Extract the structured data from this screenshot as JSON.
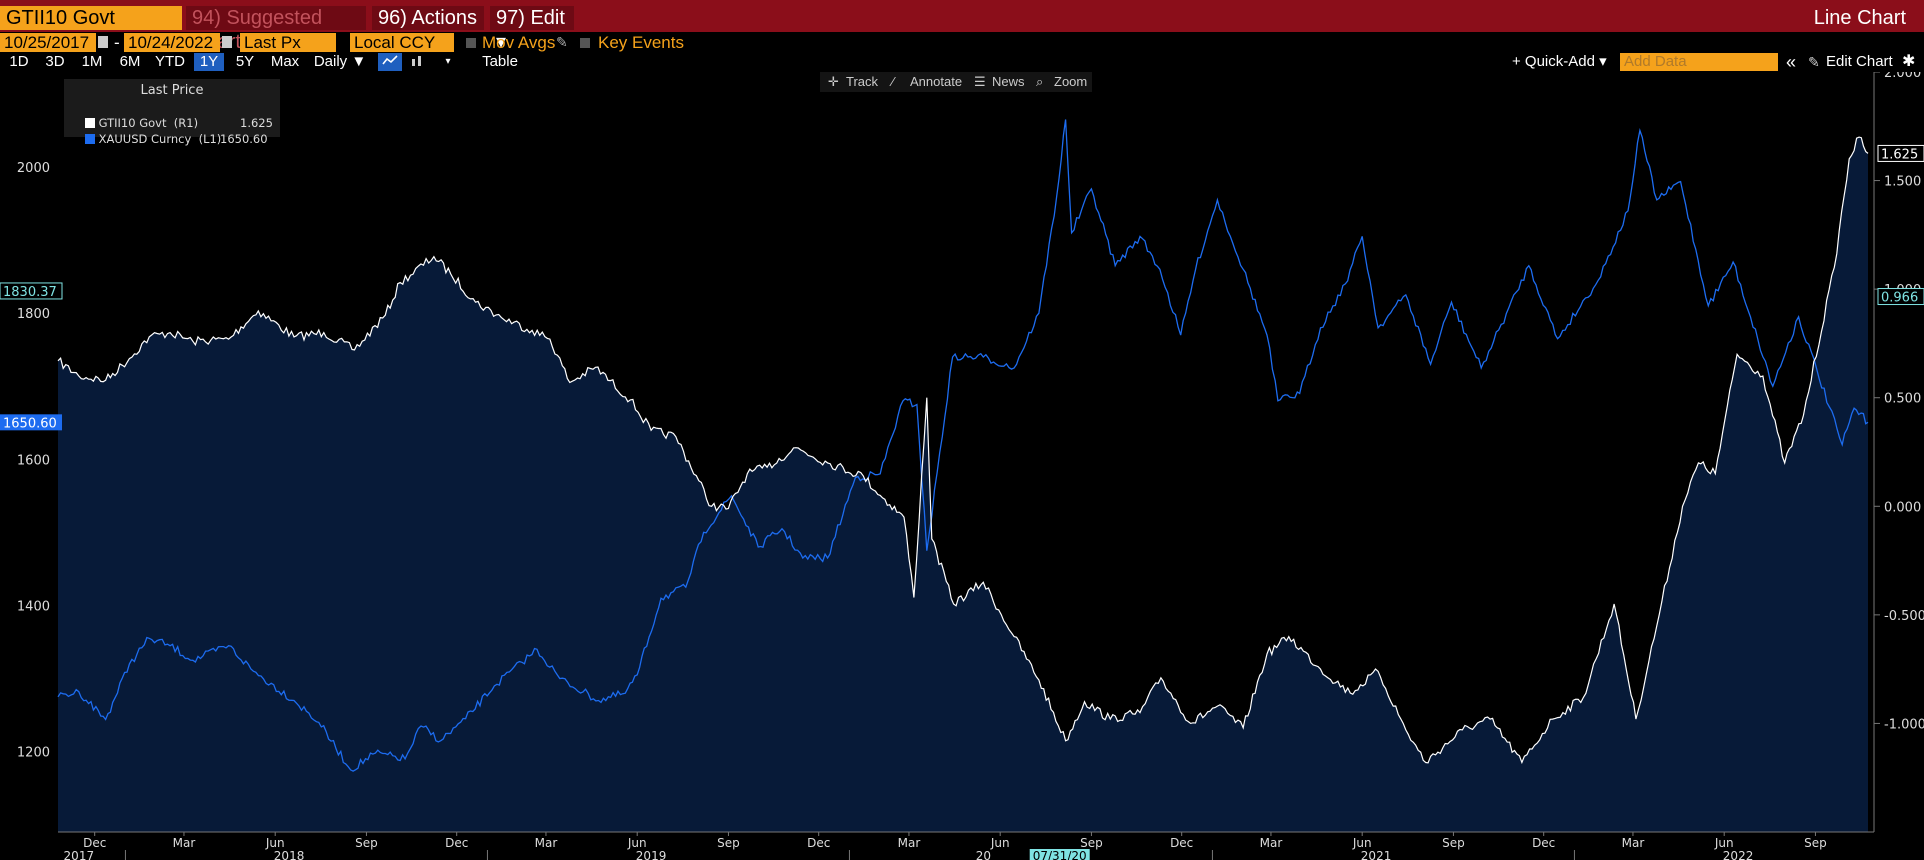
{
  "header": {
    "ticker": "GTII10 Govt",
    "suggested": "94) Suggested Charts",
    "actions": "96) Actions ▾",
    "edit": "97) Edit ▾",
    "chart_type_title": "Line Chart"
  },
  "controls": {
    "start_date": "10/25/2017",
    "dash": "-",
    "end_date": "10/24/2022",
    "field": "Last Px",
    "currency": "Local CCY",
    "mov_avgs": "Mov Avgs",
    "key_events": "Key Events",
    "ranges": [
      "1D",
      "3D",
      "1M",
      "6M",
      "YTD",
      "1Y",
      "5Y",
      "Max"
    ],
    "active_range": "1Y",
    "periodicity": "Daily ▼",
    "table": "Table",
    "quick_add": "+ Quick-Add ▾",
    "add_data_placeholder": "Add Data",
    "edit_chart": "Edit Chart",
    "collapse": "«"
  },
  "tools": {
    "track": "Track",
    "annotate": "Annotate",
    "news": "News",
    "zoom": "Zoom"
  },
  "legend": {
    "header": "Last Price",
    "rows": [
      {
        "label": "GTII10 Govt  (R1)",
        "value": "1.625",
        "color": "#ffffff"
      },
      {
        "label": "XAUUSD Curncy  (L1)",
        "value": "1650.60",
        "color": "#1d6cf0"
      }
    ]
  },
  "colors": {
    "background": "#000000",
    "fill": "#071a38",
    "gold_line": "#1d6cf0",
    "yield_line": "#ffffff",
    "accent": "#f5a21b",
    "header": "#8b0e1a"
  },
  "chart_data": {
    "type": "line",
    "x_range": [
      "2017-10-25",
      "2022-10-24"
    ],
    "x_month_ticks": [
      {
        "label": "Dec",
        "date": "2017-12-01"
      },
      {
        "label": "Mar",
        "date": "2018-03-01"
      },
      {
        "label": "Jun",
        "date": "2018-06-01"
      },
      {
        "label": "Sep",
        "date": "2018-09-01"
      },
      {
        "label": "Dec",
        "date": "2018-12-01"
      },
      {
        "label": "Mar",
        "date": "2019-03-01"
      },
      {
        "label": "Jun",
        "date": "2019-06-01"
      },
      {
        "label": "Sep",
        "date": "2019-09-01"
      },
      {
        "label": "Dec",
        "date": "2019-12-01"
      },
      {
        "label": "Mar",
        "date": "2020-03-01"
      },
      {
        "label": "Jun",
        "date": "2020-06-01"
      },
      {
        "label": "Sep",
        "date": "2020-09-01"
      },
      {
        "label": "Dec",
        "date": "2020-12-01"
      },
      {
        "label": "Mar",
        "date": "2021-03-01"
      },
      {
        "label": "Jun",
        "date": "2021-06-01"
      },
      {
        "label": "Sep",
        "date": "2021-09-01"
      },
      {
        "label": "Dec",
        "date": "2021-12-01"
      },
      {
        "label": "Mar",
        "date": "2022-03-01"
      },
      {
        "label": "Jun",
        "date": "2022-06-01"
      },
      {
        "label": "Sep",
        "date": "2022-09-01"
      }
    ],
    "x_year_labels": [
      {
        "label": "2017",
        "date": "2017-11-15"
      },
      {
        "label": "2018",
        "date": "2018-06-15"
      },
      {
        "label": "2019",
        "date": "2019-06-15"
      },
      {
        "label": "20",
        "date": "2020-05-15"
      },
      {
        "label": "07/31/20",
        "date": "2020-07-31"
      },
      {
        "label": "2021",
        "date": "2021-06-15"
      },
      {
        "label": "2022",
        "date": "2022-06-15"
      }
    ],
    "left_axis": {
      "ylim": [
        1090,
        2130
      ],
      "ticks": [
        1200,
        1400,
        1600,
        1800,
        2000
      ]
    },
    "right_axis": {
      "ylim": [
        -1.5,
        2.0
      ],
      "ticks": [
        2.0,
        1.5,
        1.0,
        0.5,
        0.0,
        -0.5,
        -1.0
      ],
      "tick_labels": [
        "2.000",
        "1.500",
        "1.000",
        "0.500",
        "0.000",
        "-0.500",
        "-1.000"
      ]
    },
    "markers": [
      {
        "axis": "left",
        "value": 1830.37,
        "label": "1830.37",
        "style": "teal"
      },
      {
        "axis": "left",
        "value": 1650.6,
        "label": "1650.60",
        "style": "blue"
      },
      {
        "axis": "right",
        "value": 1.625,
        "label": "1.625",
        "style": "white"
      },
      {
        "axis": "right",
        "value": 0.966,
        "label": "0.966",
        "style": "teal"
      }
    ],
    "series": [
      {
        "name": "XAUUSD Curncy (L1)",
        "axis": "left",
        "style": "line",
        "points": [
          [
            "2017-10-25",
            1275
          ],
          [
            "2017-11-15",
            1282
          ],
          [
            "2017-12-12",
            1244
          ],
          [
            "2018-01-05",
            1320
          ],
          [
            "2018-01-25",
            1355
          ],
          [
            "2018-02-15",
            1345
          ],
          [
            "2018-03-10",
            1325
          ],
          [
            "2018-04-15",
            1345
          ],
          [
            "2018-05-10",
            1310
          ],
          [
            "2018-06-20",
            1270
          ],
          [
            "2018-07-15",
            1240
          ],
          [
            "2018-08-16",
            1175
          ],
          [
            "2018-09-10",
            1198
          ],
          [
            "2018-10-10",
            1190
          ],
          [
            "2018-10-26",
            1235
          ],
          [
            "2018-11-15",
            1215
          ],
          [
            "2018-12-10",
            1245
          ],
          [
            "2019-01-08",
            1290
          ],
          [
            "2019-02-20",
            1340
          ],
          [
            "2019-03-15",
            1300
          ],
          [
            "2019-04-23",
            1270
          ],
          [
            "2019-05-20",
            1280
          ],
          [
            "2019-06-01",
            1305
          ],
          [
            "2019-06-25",
            1410
          ],
          [
            "2019-07-20",
            1425
          ],
          [
            "2019-08-07",
            1500
          ],
          [
            "2019-09-04",
            1550
          ],
          [
            "2019-10-01",
            1480
          ],
          [
            "2019-10-25",
            1505
          ],
          [
            "2019-11-15",
            1465
          ],
          [
            "2019-12-10",
            1465
          ],
          [
            "2020-01-07",
            1575
          ],
          [
            "2020-02-01",
            1580
          ],
          [
            "2020-02-24",
            1680
          ],
          [
            "2020-03-09",
            1675
          ],
          [
            "2020-03-19",
            1475
          ],
          [
            "2020-04-14",
            1740
          ],
          [
            "2020-05-15",
            1740
          ],
          [
            "2020-06-15",
            1725
          ],
          [
            "2020-07-10",
            1800
          ],
          [
            "2020-07-28",
            1960
          ],
          [
            "2020-08-06",
            2065
          ],
          [
            "2020-08-12",
            1910
          ],
          [
            "2020-09-01",
            1970
          ],
          [
            "2020-09-25",
            1865
          ],
          [
            "2020-10-20",
            1905
          ],
          [
            "2020-11-09",
            1860
          ],
          [
            "2020-11-30",
            1770
          ],
          [
            "2020-12-15",
            1860
          ],
          [
            "2021-01-06",
            1955
          ],
          [
            "2021-02-01",
            1860
          ],
          [
            "2021-02-25",
            1770
          ],
          [
            "2021-03-08",
            1680
          ],
          [
            "2021-03-30",
            1690
          ],
          [
            "2021-04-20",
            1780
          ],
          [
            "2021-05-15",
            1840
          ],
          [
            "2021-06-01",
            1905
          ],
          [
            "2021-06-17",
            1780
          ],
          [
            "2021-07-15",
            1825
          ],
          [
            "2021-08-09",
            1730
          ],
          [
            "2021-08-30",
            1815
          ],
          [
            "2021-09-29",
            1725
          ],
          [
            "2021-11-16",
            1865
          ],
          [
            "2021-12-15",
            1765
          ],
          [
            "2022-01-25",
            1845
          ],
          [
            "2022-02-24",
            1940
          ],
          [
            "2022-03-08",
            2050
          ],
          [
            "2022-03-25",
            1955
          ],
          [
            "2022-04-18",
            1980
          ],
          [
            "2022-05-16",
            1810
          ],
          [
            "2022-06-10",
            1870
          ],
          [
            "2022-07-20",
            1700
          ],
          [
            "2022-08-15",
            1795
          ],
          [
            "2022-09-28",
            1620
          ],
          [
            "2022-10-10",
            1670
          ],
          [
            "2022-10-24",
            1650.6
          ]
        ]
      },
      {
        "name": "GTII10 Govt (R1)",
        "axis": "right",
        "style": "area",
        "points": [
          [
            "2017-10-25",
            0.67
          ],
          [
            "2017-11-15",
            0.6
          ],
          [
            "2017-12-12",
            0.58
          ],
          [
            "2018-01-05",
            0.68
          ],
          [
            "2018-01-25",
            0.78
          ],
          [
            "2018-02-15",
            0.8
          ],
          [
            "2018-03-10",
            0.76
          ],
          [
            "2018-04-15",
            0.77
          ],
          [
            "2018-05-15",
            0.9
          ],
          [
            "2018-06-20",
            0.78
          ],
          [
            "2018-07-20",
            0.8
          ],
          [
            "2018-08-20",
            0.72
          ],
          [
            "2018-09-20",
            0.88
          ],
          [
            "2018-10-05",
            1.03
          ],
          [
            "2018-11-08",
            1.15
          ],
          [
            "2018-11-25",
            1.07
          ],
          [
            "2018-12-20",
            0.94
          ],
          [
            "2019-01-15",
            0.87
          ],
          [
            "2019-02-15",
            0.81
          ],
          [
            "2019-03-05",
            0.77
          ],
          [
            "2019-03-25",
            0.57
          ],
          [
            "2019-04-20",
            0.64
          ],
          [
            "2019-05-25",
            0.49
          ],
          [
            "2019-06-15",
            0.35
          ],
          [
            "2019-07-10",
            0.32
          ],
          [
            "2019-08-15",
            0.0
          ],
          [
            "2019-09-01",
            -0.01
          ],
          [
            "2019-09-20",
            0.15
          ],
          [
            "2019-10-10",
            0.18
          ],
          [
            "2019-11-08",
            0.27
          ],
          [
            "2019-12-10",
            0.2
          ],
          [
            "2020-01-15",
            0.14
          ],
          [
            "2020-02-01",
            0.05
          ],
          [
            "2020-02-25",
            -0.05
          ],
          [
            "2020-03-06",
            -0.42
          ],
          [
            "2020-03-19",
            0.5
          ],
          [
            "2020-03-24",
            -0.15
          ],
          [
            "2020-04-15",
            -0.45
          ],
          [
            "2020-05-15",
            -0.35
          ],
          [
            "2020-06-15",
            -0.6
          ],
          [
            "2020-07-10",
            -0.8
          ],
          [
            "2020-08-06",
            -1.08
          ],
          [
            "2020-08-25",
            -0.9
          ],
          [
            "2020-09-20",
            -0.98
          ],
          [
            "2020-10-20",
            -0.95
          ],
          [
            "2020-11-10",
            -0.79
          ],
          [
            "2020-12-10",
            -1.0
          ],
          [
            "2021-01-06",
            -0.92
          ],
          [
            "2021-02-01",
            -1.02
          ],
          [
            "2021-02-25",
            -0.68
          ],
          [
            "2021-03-19",
            -0.6
          ],
          [
            "2021-04-20",
            -0.75
          ],
          [
            "2021-05-20",
            -0.86
          ],
          [
            "2021-06-17",
            -0.76
          ],
          [
            "2021-07-15",
            -1.03
          ],
          [
            "2021-08-04",
            -1.18
          ],
          [
            "2021-09-10",
            -1.03
          ],
          [
            "2021-10-08",
            -0.98
          ],
          [
            "2021-11-09",
            -1.18
          ],
          [
            "2021-12-10",
            -0.98
          ],
          [
            "2022-01-10",
            -0.88
          ],
          [
            "2022-02-10",
            -0.45
          ],
          [
            "2022-03-04",
            -0.98
          ],
          [
            "2022-03-25",
            -0.55
          ],
          [
            "2022-04-20",
            0.0
          ],
          [
            "2022-05-06",
            0.2
          ],
          [
            "2022-05-23",
            0.15
          ],
          [
            "2022-06-14",
            0.7
          ],
          [
            "2022-07-10",
            0.6
          ],
          [
            "2022-08-01",
            0.2
          ],
          [
            "2022-08-20",
            0.42
          ],
          [
            "2022-09-20",
            1.1
          ],
          [
            "2022-10-05",
            1.6
          ],
          [
            "2022-10-15",
            1.7
          ],
          [
            "2022-10-24",
            1.625
          ]
        ]
      }
    ]
  }
}
